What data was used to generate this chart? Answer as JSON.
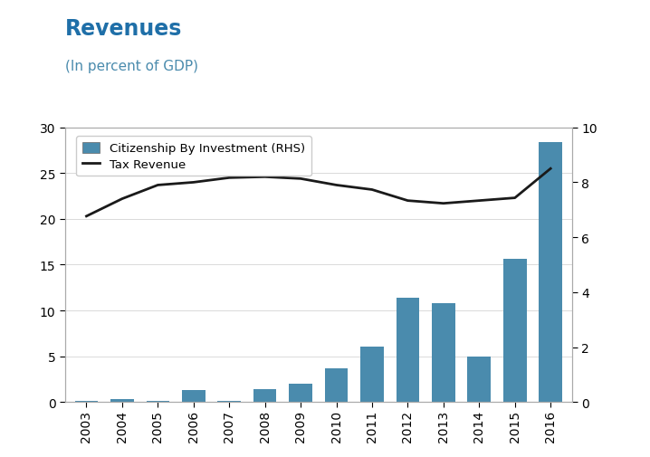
{
  "title": "Revenues",
  "subtitle": "(In percent of GDP)",
  "years": [
    2003,
    2004,
    2005,
    2006,
    2007,
    2008,
    2009,
    2010,
    2011,
    2012,
    2013,
    2014,
    2015,
    2016
  ],
  "cbi_values": [
    0.1,
    0.35,
    0.1,
    1.3,
    0.1,
    1.4,
    2.0,
    3.7,
    6.1,
    11.4,
    10.8,
    5.0,
    15.6,
    28.4
  ],
  "tax_revenue": [
    20.3,
    22.2,
    23.7,
    24.0,
    24.5,
    24.6,
    24.4,
    23.7,
    23.2,
    22.0,
    21.7,
    22.0,
    22.3,
    25.5
  ],
  "bar_color": "#4a8bad",
  "line_color": "#1a1a1a",
  "title_color": "#1f6fa8",
  "subtitle_color": "#4a8bad",
  "left_ylim": [
    0,
    30
  ],
  "right_ylim": [
    0,
    10
  ],
  "left_yticks": [
    0,
    5,
    10,
    15,
    20,
    25,
    30
  ],
  "right_yticks": [
    0,
    2,
    4,
    6,
    8,
    10
  ],
  "background_color": "#ffffff",
  "legend_cbi_label": "Citizenship By Investment (RHS)",
  "legend_tax_label": "Tax Revenue",
  "title_fontsize": 17,
  "subtitle_fontsize": 11
}
